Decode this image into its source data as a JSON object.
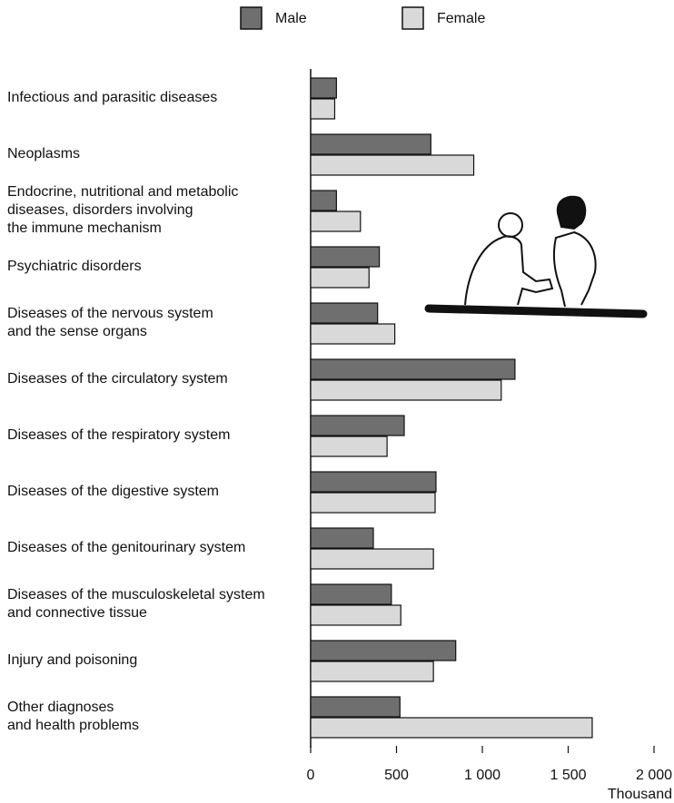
{
  "chart_data": {
    "type": "hbar",
    "categories": [
      "Infectious and parasitic diseases",
      "Neoplasms",
      "Endocrine, nutritional and metabolic\ndiseases, disorders involving\nthe immune mechanism",
      "Psychiatric disorders",
      "Diseases of the nervous system\nand the sense organs",
      "Diseases of the circulatory system",
      "Diseases of the respiratory system",
      "Diseases of the digestive system",
      "Diseases of the genitourinary system",
      "Diseases of the musculoskeletal system\nand connective tissue",
      "Injury and poisoning",
      "Other diagnoses\nand health problems"
    ],
    "series": [
      {
        "name": "Male",
        "color": "#6f6f6f",
        "values": [
          150,
          700,
          150,
          400,
          390,
          1190,
          545,
          730,
          365,
          470,
          845,
          520
        ]
      },
      {
        "name": "Female",
        "color": "#d9d9d9",
        "values": [
          140,
          950,
          290,
          340,
          490,
          1110,
          445,
          725,
          715,
          525,
          715,
          1640
        ]
      }
    ],
    "xlim": [
      0,
      2000
    ],
    "xticks": [
      0,
      500,
      {
        "value": 1000,
        "label": "1 000"
      },
      {
        "value": 1500,
        "label": "1 500"
      },
      {
        "value": 2000,
        "label": "2 000"
      }
    ],
    "xlabel": "Thousand"
  }
}
